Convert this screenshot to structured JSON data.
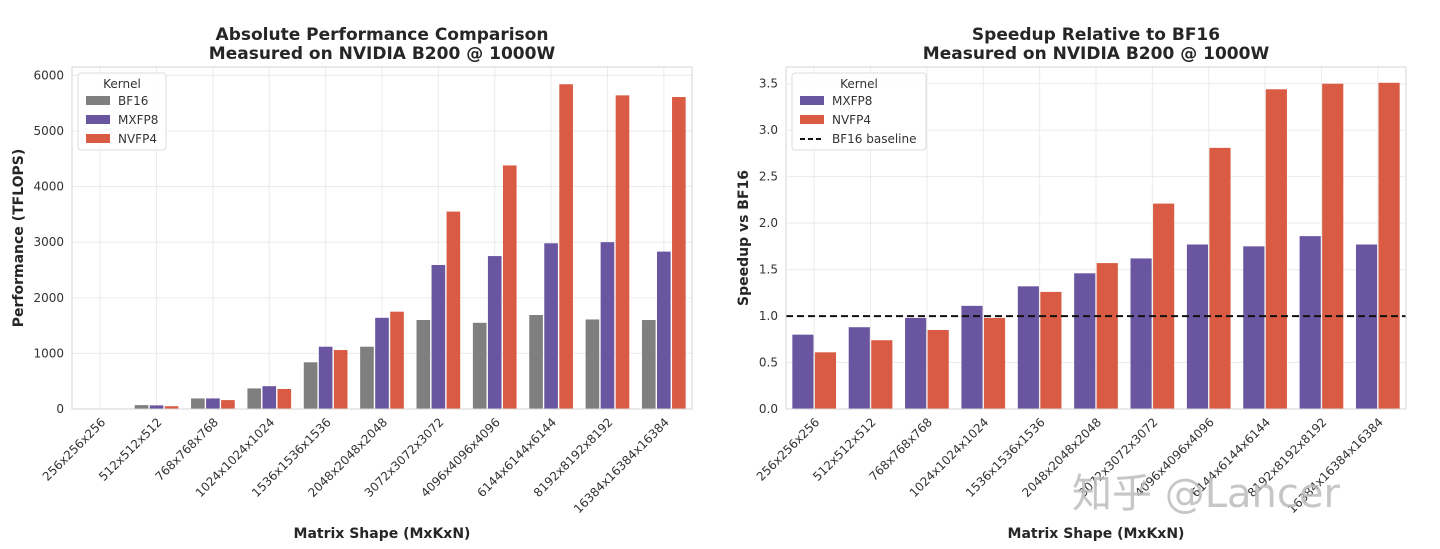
{
  "colors": {
    "BF16": "#7f7f7f",
    "MXFP8": "#6a55a0",
    "NVFP4": "#d95b43",
    "baseline": "#111111",
    "grid": "#ebebeb",
    "frame": "#d6d6d6"
  },
  "watermark": "知乎 @Lancer",
  "chart_data": [
    {
      "type": "bar",
      "title": "Absolute Performance Comparison\nMeasured on NVIDIA B200 @ 1000W",
      "title_lines": [
        "Absolute Performance Comparison",
        "Measured on NVIDIA B200 @ 1000W"
      ],
      "xlabel": "Matrix Shape (MxKxN)",
      "ylabel": "Performance (TFLOPS)",
      "ylim": [
        0,
        6150
      ],
      "yticks": [
        0,
        1000,
        2000,
        3000,
        4000,
        5000,
        6000
      ],
      "ytick_labels": [
        "0",
        "1000",
        "2000",
        "3000",
        "4000",
        "5000",
        "6000"
      ],
      "grid": true,
      "legend": {
        "title": "Kernel",
        "placement": "top-left",
        "entries": [
          "BF16",
          "MXFP8",
          "NVFP4"
        ]
      },
      "categories": [
        "256x256x256",
        "512x512x512",
        "768x768x768",
        "1024x1024x1024",
        "1536x1536x1536",
        "2048x2048x2048",
        "3072x3072x3072",
        "4096x4096x4096",
        "6144x6144x6144",
        "8192x8192x8192",
        "16384x16384x16384"
      ],
      "series": [
        {
          "name": "BF16",
          "values": [
            5,
            70,
            190,
            370,
            840,
            1120,
            1600,
            1550,
            1690,
            1610,
            1600
          ]
        },
        {
          "name": "MXFP8",
          "values": [
            5,
            65,
            190,
            410,
            1120,
            1640,
            2590,
            2750,
            2980,
            3000,
            2830
          ]
        },
        {
          "name": "NVFP4",
          "values": [
            3,
            50,
            160,
            360,
            1060,
            1750,
            3550,
            4380,
            5840,
            5640,
            5610
          ]
        }
      ]
    },
    {
      "type": "bar",
      "title": "Speedup Relative to BF16\nMeasured on NVIDIA B200 @ 1000W",
      "title_lines": [
        "Speedup Relative to BF16",
        "Measured on NVIDIA B200 @ 1000W"
      ],
      "xlabel": "Matrix Shape (MxKxN)",
      "ylabel": "Speedup vs BF16",
      "ylim": [
        0,
        3.68
      ],
      "yticks": [
        0,
        0.5,
        1.0,
        1.5,
        2.0,
        2.5,
        3.0,
        3.5
      ],
      "ytick_labels": [
        "0.0",
        "0.5",
        "1.0",
        "1.5",
        "2.0",
        "2.5",
        "3.0",
        "3.5"
      ],
      "grid": true,
      "legend": {
        "title": "Kernel",
        "placement": "top-left",
        "entries": [
          "MXFP8",
          "NVFP4",
          "BF16 baseline"
        ]
      },
      "baseline": {
        "name": "BF16 baseline",
        "value": 1.0,
        "style": "dashed"
      },
      "categories": [
        "256x256x256",
        "512x512x512",
        "768x768x768",
        "1024x1024x1024",
        "1536x1536x1536",
        "2048x2048x2048",
        "3072x3072x3072",
        "4096x4096x4096",
        "6144x6144x6144",
        "8192x8192x8192",
        "16384x16384x16384"
      ],
      "series": [
        {
          "name": "MXFP8",
          "values": [
            0.8,
            0.88,
            0.98,
            1.11,
            1.32,
            1.46,
            1.62,
            1.77,
            1.75,
            1.86,
            1.77
          ]
        },
        {
          "name": "NVFP4",
          "values": [
            0.61,
            0.74,
            0.85,
            0.98,
            1.26,
            1.57,
            2.21,
            2.81,
            3.44,
            3.5,
            3.51
          ]
        }
      ]
    }
  ]
}
